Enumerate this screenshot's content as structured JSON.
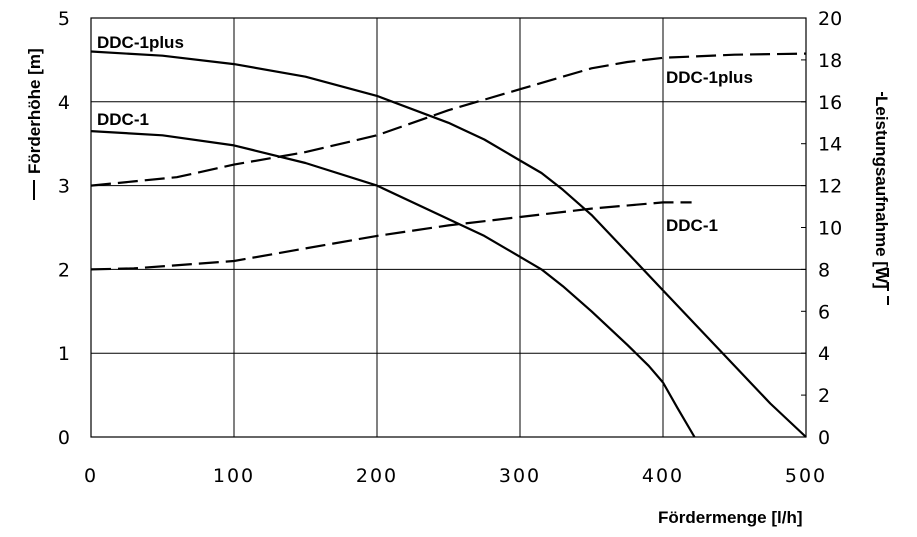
{
  "chart_data": {
    "type": "line",
    "xlabel": "Fördermenge [l/h]",
    "ylabel": "Förderhöhe [m]",
    "y2label": "Leistungsaufnahme [W]",
    "x_ticks": [
      "0",
      "100",
      "200",
      "300",
      "400",
      "500"
    ],
    "y_ticks": [
      "0",
      "1",
      "2",
      "3",
      "4",
      "5"
    ],
    "y2_ticks": [
      "0",
      "2",
      "4",
      "6",
      "8",
      "10",
      "12",
      "14",
      "16",
      "18",
      "20"
    ],
    "xlim": [
      0,
      500
    ],
    "ylim": [
      0,
      5
    ],
    "y2lim": [
      0,
      20
    ],
    "grid": true,
    "series": [
      {
        "name": "DDC-1plus",
        "axis": "left",
        "style": "solid",
        "x": [
          0,
          50,
          100,
          150,
          200,
          250,
          275,
          300,
          315,
          330,
          350,
          375,
          400,
          425,
          450,
          475,
          500
        ],
        "y": [
          4.6,
          4.55,
          4.45,
          4.3,
          4.07,
          3.75,
          3.55,
          3.3,
          3.15,
          2.95,
          2.65,
          2.2,
          1.75,
          1.3,
          0.85,
          0.4,
          0.0
        ]
      },
      {
        "name": "DDC-1",
        "axis": "left",
        "style": "solid",
        "x": [
          0,
          50,
          100,
          150,
          200,
          250,
          275,
          300,
          315,
          330,
          350,
          375,
          390,
          400,
          410,
          422
        ],
        "y": [
          3.65,
          3.6,
          3.48,
          3.27,
          3.0,
          2.6,
          2.4,
          2.15,
          2.0,
          1.8,
          1.5,
          1.1,
          0.85,
          0.65,
          0.35,
          0.0
        ]
      },
      {
        "name": "DDC-1plus",
        "axis": "right",
        "style": "dashed",
        "x": [
          0,
          30,
          60,
          100,
          150,
          200,
          250,
          300,
          350,
          375,
          400,
          450,
          500
        ],
        "y": [
          12.0,
          12.2,
          12.4,
          13.0,
          13.6,
          14.4,
          15.6,
          16.6,
          17.6,
          17.9,
          18.1,
          18.25,
          18.3
        ]
      },
      {
        "name": "DDC-1",
        "axis": "right",
        "style": "dashed",
        "x": [
          0,
          30,
          100,
          150,
          200,
          250,
          300,
          350,
          400,
          420
        ],
        "y": [
          8.0,
          8.05,
          8.4,
          9.0,
          9.6,
          10.1,
          10.5,
          10.9,
          11.2,
          11.2
        ]
      }
    ],
    "annotations": [
      {
        "text": "DDC-1plus",
        "series": 0
      },
      {
        "text": "DDC-1",
        "series": 1
      },
      {
        "text": "DDC-1plus",
        "series": 2
      },
      {
        "text": "DDC-1",
        "series": 3
      }
    ]
  }
}
